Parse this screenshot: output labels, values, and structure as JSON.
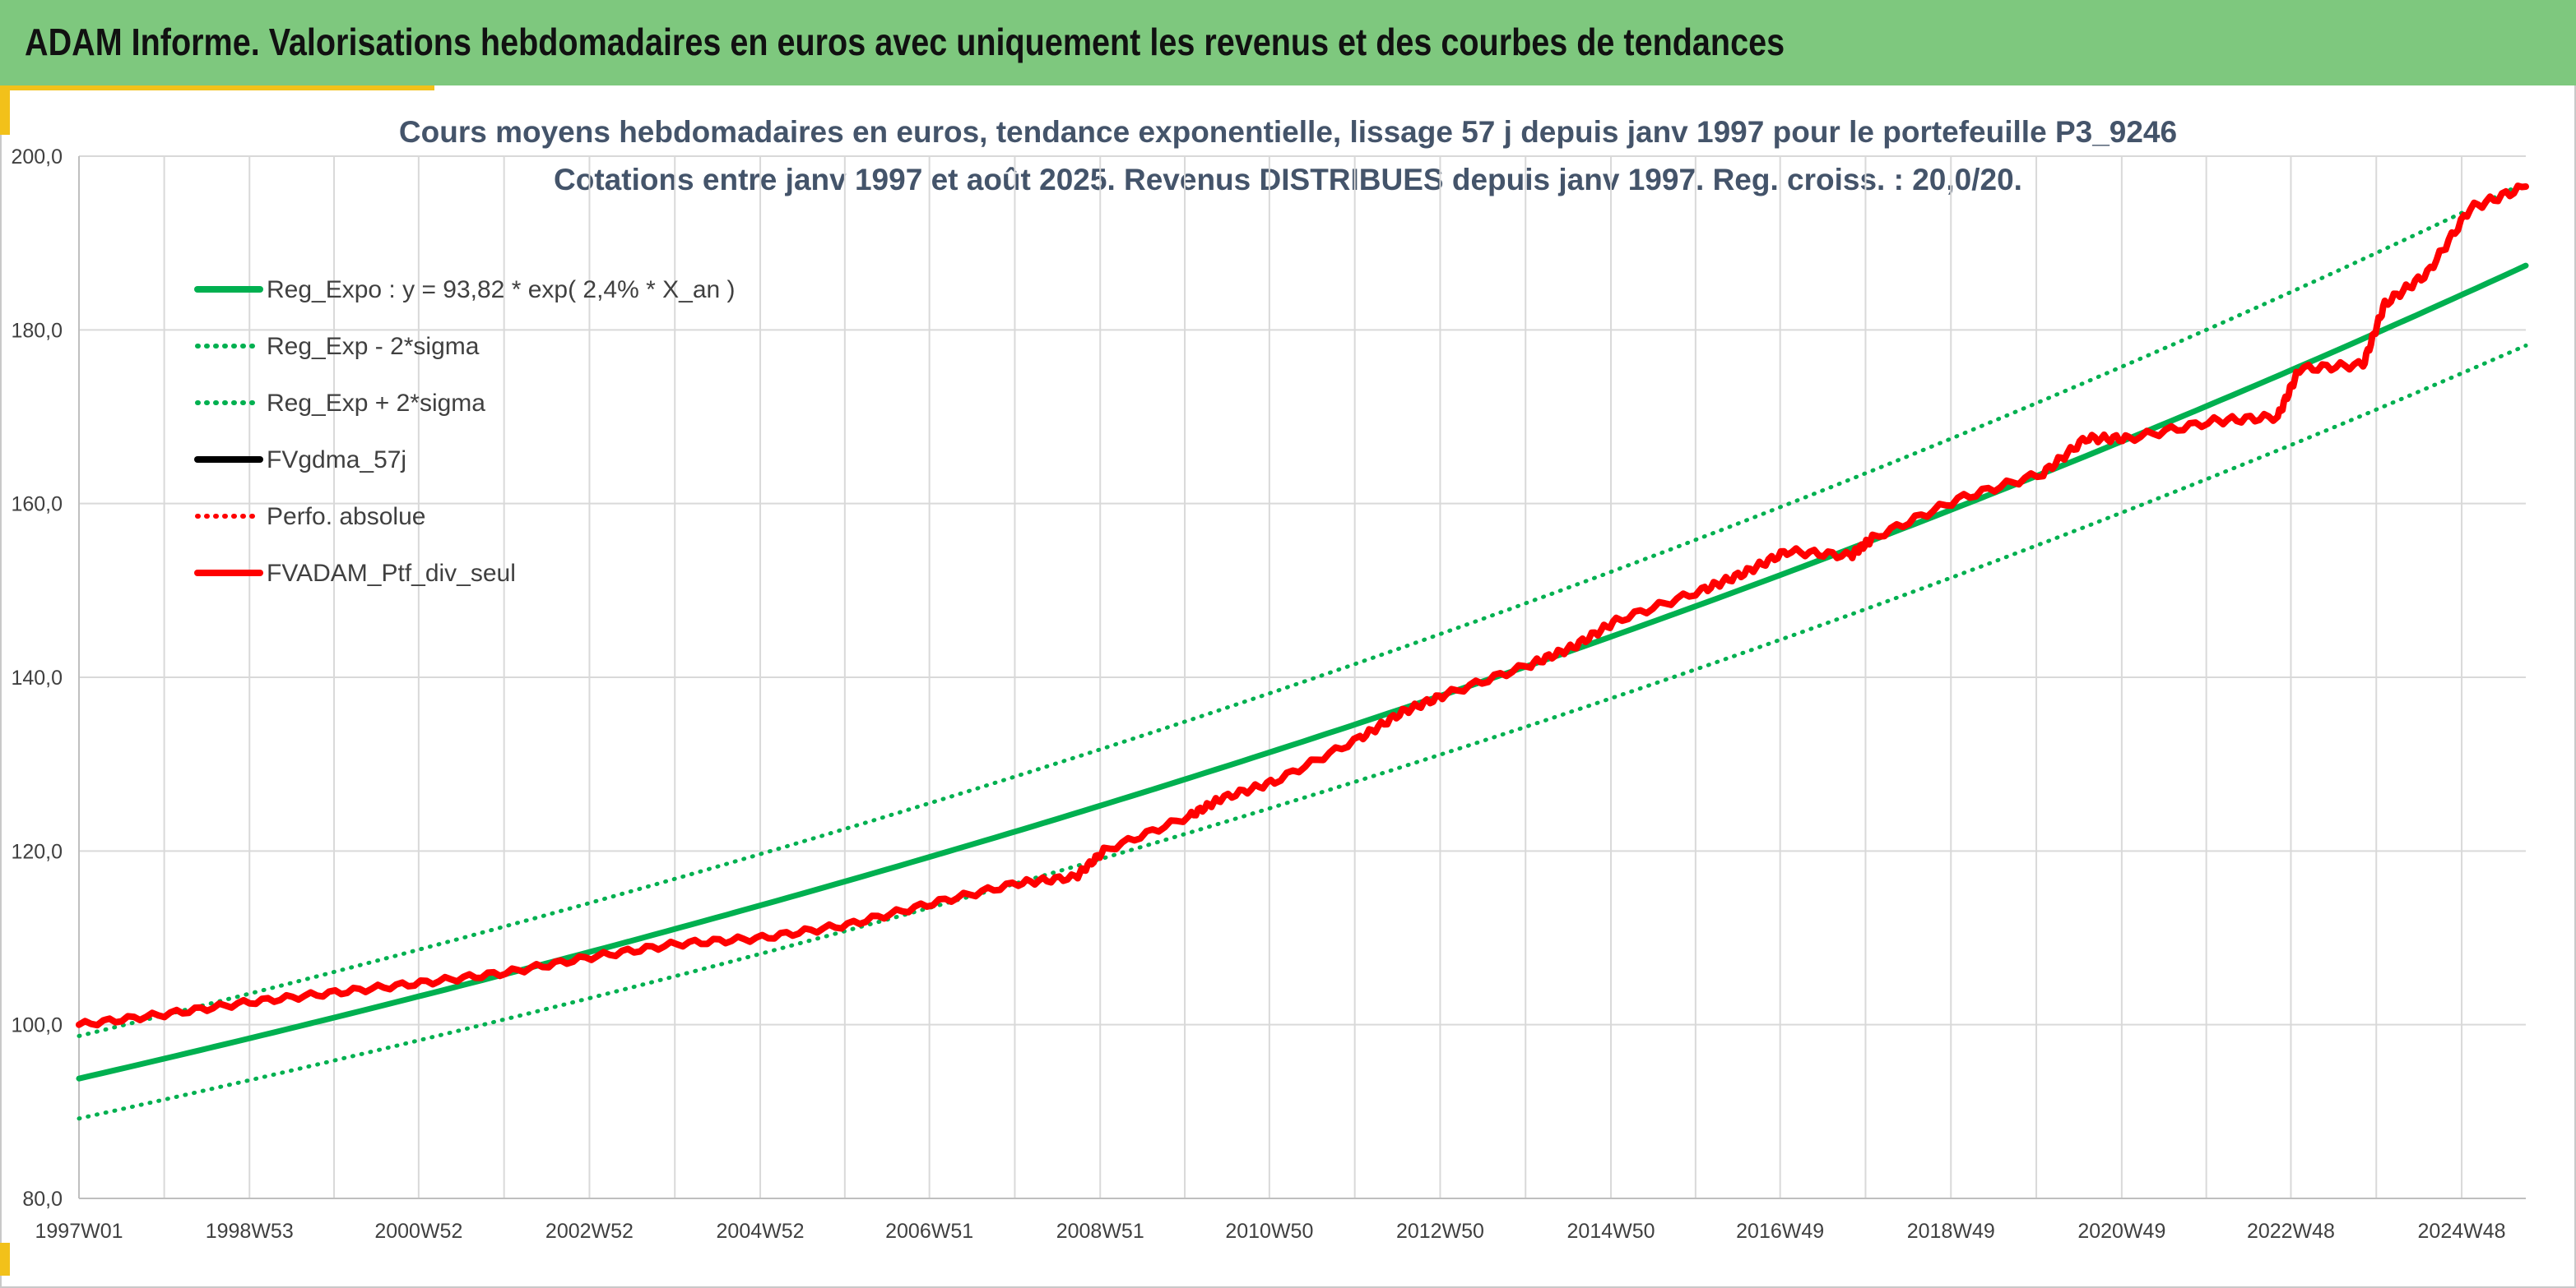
{
  "header": {
    "title": "ADAM Informe. Valorisations hebdomadaires en euros avec uniquement les revenus et des courbes de tendances"
  },
  "colors": {
    "header_bg": "#7ec87e",
    "accent": "#f2c11a",
    "trend": "#00b050",
    "red": "#ff0000",
    "black": "#000000"
  },
  "chart_data": {
    "type": "line",
    "title": "Cours moyens hebdomadaires en euros, tendance exponentielle, lissage 57 j depuis janv 1997 pour le portefeuille P3_9246",
    "subtitle": "Cotations entre janv 1997 et août 2025. Revenus DISTRIBUES depuis janv 1997. Reg. croiss. : 20,0/20.",
    "ylim": [
      80,
      200
    ],
    "y_ticks": [
      "80,0",
      "100,0",
      "120,0",
      "140,0",
      "160,0",
      "180,0",
      "200,0"
    ],
    "x_ticks": [
      "1997W01",
      "1998W53",
      "2000W52",
      "2002W52",
      "2004W52",
      "2006W51",
      "2008W51",
      "2010W50",
      "2012W50",
      "2014W50",
      "2016W49",
      "2018W49",
      "2020W49",
      "2022W48",
      "2024W48"
    ],
    "x_range": [
      "1997W01",
      "2025W35"
    ],
    "grid": true,
    "legend_position": "top-left",
    "series": [
      {
        "name": "Reg_Expo : y = 93,82 * exp( 2,4% *  X_an )",
        "color": "#00b050",
        "style": "solid",
        "x": [
          "1997W01",
          "2025W35"
        ],
        "values": [
          93.8,
          187.4
        ]
      },
      {
        "name": "Reg_Exp - 2*sigma",
        "color": "#00b050",
        "style": "dotted",
        "x": [
          "1997W01",
          "2025W35"
        ],
        "values": [
          89.2,
          178.2
        ]
      },
      {
        "name": "Reg_Exp + 2*sigma",
        "color": "#00b050",
        "style": "dotted",
        "x": [
          "1997W01",
          "2025W35"
        ],
        "values": [
          98.7,
          197.0
        ]
      },
      {
        "name": "FVgdma_57j",
        "color": "#000000",
        "style": "solid",
        "x": [
          "1997W01",
          "1998W01",
          "1999W01",
          "2000W01",
          "2001W01",
          "2002W01",
          "2003W01",
          "2004W01",
          "2005W01",
          "2006W01",
          "2007W01",
          "2008W01",
          "2008W36",
          "2009W01",
          "2010W01",
          "2010W20",
          "2011W01",
          "2012W01",
          "2012W27",
          "2013W01",
          "2014W01",
          "2014W27",
          "2015W01",
          "2016W01",
          "2016W27",
          "2017W01",
          "2017W40",
          "2018W01",
          "2019W01",
          "2020W01",
          "2020W27",
          "2021W01",
          "2022W01",
          "2022W40",
          "2023W01",
          "2023W40",
          "2024W01",
          "2024W27",
          "2025W01",
          "2025W35"
        ],
        "values": [
          100.0,
          101.2,
          102.6,
          103.7,
          104.8,
          106.0,
          107.8,
          109.3,
          110.0,
          111.5,
          114.0,
          116.3,
          117.0,
          120.0,
          124.0,
          126.0,
          128.0,
          133.0,
          136.0,
          138.0,
          141.5,
          143.5,
          146.5,
          150.0,
          152.0,
          154.5,
          154.0,
          156.0,
          160.5,
          163.5,
          167.5,
          167.5,
          169.5,
          170.0,
          175.5,
          176.0,
          183.0,
          186.5,
          194.0,
          196.5
        ]
      },
      {
        "name": "Perfo. absolue",
        "color": "#ff0000",
        "style": "dotted",
        "x": [
          "1997W01",
          "1998W01",
          "1999W01",
          "2000W01",
          "2001W01",
          "2002W01",
          "2003W01",
          "2004W01",
          "2005W01",
          "2006W01",
          "2007W01",
          "2008W01",
          "2008W36",
          "2009W01",
          "2010W01",
          "2010W20",
          "2011W01",
          "2012W01",
          "2012W27",
          "2013W01",
          "2014W01",
          "2014W27",
          "2015W01",
          "2016W01",
          "2016W27",
          "2017W01",
          "2017W40",
          "2018W01",
          "2019W01",
          "2020W01",
          "2020W27",
          "2021W01",
          "2022W01",
          "2022W40",
          "2023W01",
          "2023W40",
          "2024W01",
          "2024W27",
          "2025W01",
          "2025W35"
        ],
        "values": [
          100.0,
          101.2,
          102.6,
          103.7,
          104.8,
          106.0,
          107.8,
          109.3,
          110.0,
          111.5,
          114.0,
          116.3,
          117.0,
          120.0,
          124.0,
          126.0,
          128.0,
          133.0,
          136.0,
          138.0,
          141.5,
          143.5,
          146.5,
          150.0,
          152.0,
          154.5,
          154.0,
          156.0,
          160.5,
          163.5,
          167.5,
          167.5,
          169.5,
          170.0,
          175.5,
          176.0,
          183.0,
          186.5,
          194.0,
          196.5
        ]
      },
      {
        "name": "FVADAM_Ptf_div_seul",
        "color": "#ff0000",
        "style": "solid",
        "x": [
          "1997W01",
          "1998W01",
          "1999W01",
          "2000W01",
          "2001W01",
          "2002W01",
          "2003W01",
          "2004W01",
          "2005W01",
          "2006W01",
          "2007W01",
          "2008W01",
          "2008W36",
          "2009W01",
          "2010W01",
          "2010W20",
          "2011W01",
          "2012W01",
          "2012W27",
          "2013W01",
          "2014W01",
          "2014W27",
          "2015W01",
          "2016W01",
          "2016W27",
          "2017W01",
          "2017W40",
          "2018W01",
          "2019W01",
          "2020W01",
          "2020W27",
          "2021W01",
          "2022W01",
          "2022W40",
          "2023W01",
          "2023W40",
          "2024W01",
          "2024W27",
          "2025W01",
          "2025W35"
        ],
        "values": [
          100.0,
          101.2,
          102.6,
          103.7,
          104.8,
          106.0,
          107.8,
          109.3,
          110.0,
          111.5,
          114.0,
          116.3,
          117.0,
          120.0,
          124.0,
          126.0,
          128.0,
          133.0,
          136.0,
          138.0,
          141.5,
          143.5,
          146.5,
          150.0,
          152.0,
          154.5,
          154.0,
          156.0,
          160.5,
          163.5,
          167.5,
          167.5,
          169.5,
          170.0,
          175.5,
          176.0,
          183.0,
          186.5,
          194.0,
          196.5
        ]
      }
    ]
  }
}
